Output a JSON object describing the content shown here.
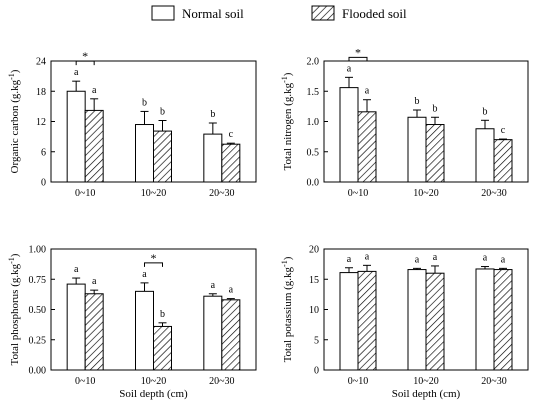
{
  "legend": {
    "items": [
      {
        "label": "Normal soil",
        "pattern": "none"
      },
      {
        "label": "Flooded soil",
        "pattern": "hatch"
      }
    ]
  },
  "chart_data": [
    {
      "type": "bar",
      "title": "",
      "xlabel": "",
      "ylabel_main": "Organic carbon (g.kg",
      "ylabel_sup": "-1",
      "ylabel_end": ")",
      "categories": [
        "0~10",
        "10~20",
        "20~30"
      ],
      "ylim": [
        0,
        24
      ],
      "yticks": [
        0,
        6,
        12,
        18,
        24
      ],
      "tick_decimals": 0,
      "series": [
        {
          "name": "Normal soil",
          "values": [
            18.0,
            11.4,
            9.5
          ],
          "errors": [
            2.0,
            2.6,
            2.2
          ],
          "letters": [
            "a",
            "b",
            "b"
          ]
        },
        {
          "name": "Flooded soil",
          "values": [
            14.2,
            10.1,
            7.5
          ],
          "errors": [
            2.3,
            2.1,
            0.2
          ],
          "letters": [
            "a",
            "b",
            "c"
          ]
        }
      ],
      "significance": [
        {
          "category_index": 0,
          "label": "*"
        }
      ]
    },
    {
      "type": "bar",
      "title": "",
      "xlabel": "",
      "ylabel_main": "Total nitrogen (g.kg",
      "ylabel_sup": "-1",
      "ylabel_end": ")",
      "categories": [
        "0~10",
        "10~20",
        "20~30"
      ],
      "ylim": [
        0,
        2.0
      ],
      "yticks": [
        0.0,
        0.5,
        1.0,
        1.5,
        2.0
      ],
      "tick_decimals": 1,
      "series": [
        {
          "name": "Normal soil",
          "values": [
            1.56,
            1.07,
            0.88
          ],
          "errors": [
            0.17,
            0.12,
            0.14
          ],
          "letters": [
            "a",
            "b",
            "b"
          ]
        },
        {
          "name": "Flooded soil",
          "values": [
            1.16,
            0.95,
            0.7
          ],
          "errors": [
            0.2,
            0.12,
            0.01
          ],
          "letters": [
            "a",
            "b",
            "c"
          ]
        }
      ],
      "significance": [
        {
          "category_index": 0,
          "label": "*"
        }
      ]
    },
    {
      "type": "bar",
      "title": "",
      "xlabel": "Soil depth (cm)",
      "ylabel_main": "Total phosphorus (g.kg",
      "ylabel_sup": "-1",
      "ylabel_end": ")",
      "categories": [
        "0~10",
        "10~20",
        "20~30"
      ],
      "ylim": [
        0,
        1.0
      ],
      "yticks": [
        0.0,
        0.25,
        0.5,
        0.75,
        1.0
      ],
      "tick_decimals": 2,
      "series": [
        {
          "name": "Normal soil",
          "values": [
            0.71,
            0.65,
            0.61
          ],
          "errors": [
            0.05,
            0.07,
            0.02
          ],
          "letters": [
            "a",
            "a",
            "a"
          ]
        },
        {
          "name": "Flooded soil",
          "values": [
            0.63,
            0.36,
            0.58
          ],
          "errors": [
            0.03,
            0.03,
            0.01
          ],
          "letters": [
            "a",
            "b",
            "a"
          ]
        }
      ],
      "significance": [
        {
          "category_index": 1,
          "label": "*"
        }
      ]
    },
    {
      "type": "bar",
      "title": "",
      "xlabel": "Soil depth (cm)",
      "ylabel_main": "Total potassium (g.kg",
      "ylabel_sup": "-1",
      "ylabel_end": ")",
      "categories": [
        "0~10",
        "10~20",
        "20~30"
      ],
      "ylim": [
        0,
        20
      ],
      "yticks": [
        0,
        5,
        10,
        15,
        20
      ],
      "tick_decimals": 0,
      "series": [
        {
          "name": "Normal soil",
          "values": [
            16.1,
            16.6,
            16.7
          ],
          "errors": [
            0.8,
            0.2,
            0.4
          ],
          "letters": [
            "a",
            "a",
            "a"
          ]
        },
        {
          "name": "Flooded soil",
          "values": [
            16.3,
            16.0,
            16.6
          ],
          "errors": [
            1.0,
            1.2,
            0.2
          ],
          "letters": [
            "a",
            "a",
            "a"
          ]
        }
      ],
      "significance": []
    }
  ]
}
